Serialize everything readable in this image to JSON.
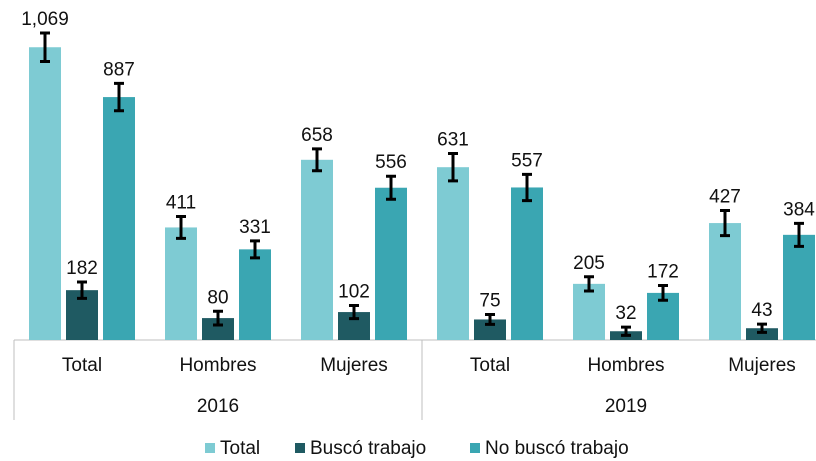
{
  "chart_data": {
    "type": "bar",
    "groups": [
      {
        "name": "2016",
        "categories": [
          "Total",
          "Hombres",
          "Mujeres"
        ]
      },
      {
        "name": "2019",
        "categories": [
          "Total",
          "Hombres",
          "Mujeres"
        ]
      }
    ],
    "series": [
      {
        "name": "Total",
        "color": "#7ecbd3",
        "values": [
          1069,
          411,
          658,
          631,
          205,
          427
        ],
        "value_labels": [
          "1,069",
          "411",
          "658",
          "631",
          "205",
          "427"
        ],
        "errors": [
          52,
          40,
          40,
          50,
          26,
          46
        ]
      },
      {
        "name": "Buscó trabajo",
        "color": "#1f5a62",
        "values": [
          182,
          80,
          102,
          75,
          32,
          43
        ],
        "value_labels": [
          "182",
          "80",
          "102",
          "75",
          "32",
          "43"
        ],
        "errors": [
          30,
          25,
          24,
          18,
          15,
          15
        ]
      },
      {
        "name": "No buscó trabajo",
        "color": "#3aa6b2",
        "values": [
          887,
          331,
          556,
          557,
          172,
          384
        ],
        "value_labels": [
          "887",
          "331",
          "556",
          "557",
          "172",
          "384"
        ],
        "errors": [
          50,
          31,
          42,
          48,
          27,
          42
        ]
      }
    ],
    "legend": "bottom"
  }
}
